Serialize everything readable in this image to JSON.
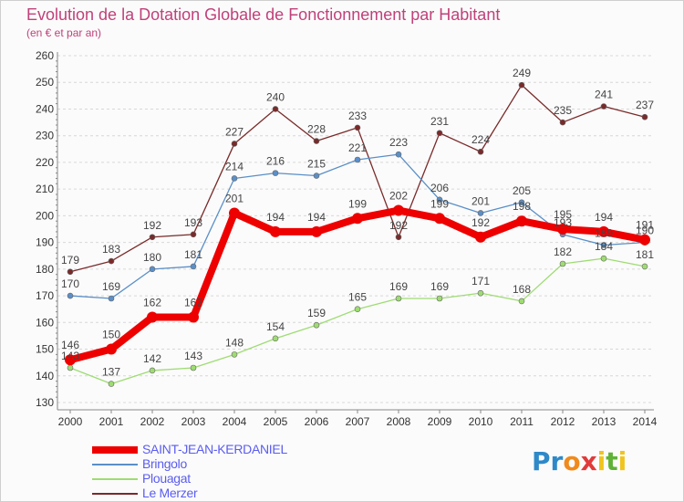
{
  "title": "Evolution de la Dotation Globale de Fonctionnement par Habitant",
  "subtitle": "(en € et par an)",
  "logo": "Proxiti",
  "colors": {
    "title": "#c0417a",
    "legend_text": "#5a5cf0",
    "axis_text": "#333333",
    "grid": "#d8d8d8"
  },
  "chart_data": {
    "type": "line",
    "title": "Evolution de la Dotation Globale de Fonctionnement par Habitant",
    "subtitle": "(en € et par an)",
    "xlabel": "",
    "ylabel": "",
    "x": [
      "2000",
      "2001",
      "2002",
      "2003",
      "2004",
      "2005",
      "2006",
      "2007",
      "2008",
      "2009",
      "2010",
      "2011",
      "2012",
      "2013",
      "2014"
    ],
    "ylim": [
      130,
      260
    ],
    "yticks": [
      130,
      140,
      150,
      160,
      170,
      180,
      190,
      200,
      210,
      220,
      230,
      240,
      250,
      260
    ],
    "grid": "horizontal dashed",
    "legend_position": "bottom-left",
    "series": [
      {
        "name": "SAINT-JEAN-KERDANIEL",
        "color": "#ee0000",
        "values": [
          146,
          150,
          162,
          162,
          201,
          194,
          194,
          199,
          202,
          199,
          192,
          198,
          195,
          194,
          191
        ],
        "labels": [
          "146",
          "150",
          "162",
          "162",
          "201",
          "194",
          "194",
          "199",
          "202",
          "199",
          "192",
          "198",
          "195",
          "194",
          "191"
        ]
      },
      {
        "name": "Bringolo",
        "color": "#5a8fc8",
        "values": [
          170,
          169,
          180,
          181,
          214,
          216,
          215,
          221,
          223,
          206,
          201,
          205,
          193,
          189,
          190
        ],
        "labels": [
          "170",
          "169",
          "180",
          "181",
          "214",
          "216",
          "215",
          "221",
          "223",
          "206",
          "201",
          "205",
          "193",
          "189",
          "190"
        ]
      },
      {
        "name": "Plouagat",
        "color": "#9edc72",
        "values": [
          143,
          137,
          142,
          143,
          148,
          154,
          159,
          165,
          169,
          169,
          171,
          168,
          182,
          184,
          181
        ],
        "labels": [
          "143",
          "137",
          "142",
          "143",
          "148",
          "154",
          "159",
          "165",
          "169",
          "169",
          "171",
          "168",
          "182",
          "184",
          "181"
        ]
      },
      {
        "name": "Le Merzer",
        "color": "#7a2a2a",
        "values": [
          179,
          183,
          192,
          193,
          227,
          240,
          228,
          233,
          192,
          231,
          224,
          249,
          235,
          241,
          237
        ],
        "labels": [
          "179",
          "183",
          "192",
          "193",
          "227",
          "240",
          "228",
          "233",
          "192",
          "231",
          "224",
          "249",
          "235",
          "241",
          "237"
        ]
      }
    ]
  }
}
